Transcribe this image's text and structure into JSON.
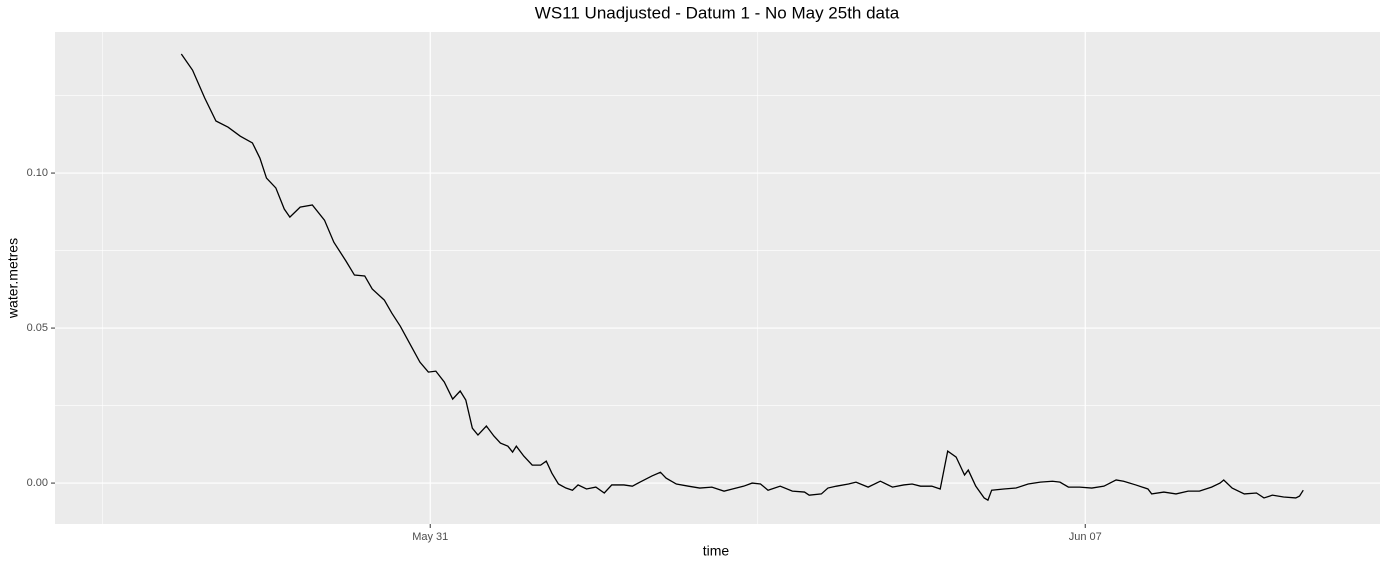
{
  "chart_data": {
    "type": "line",
    "title": "WS11 Unadjusted - Datum 1 - No May 25th data",
    "x_label": "time",
    "y_label": "water.metres",
    "xlim": [
      26.99,
      41.15
    ],
    "xticks": [
      {
        "value": 31,
        "label": "May 31"
      },
      {
        "value": 38,
        "label": "Jun 07"
      }
    ],
    "ylim": [
      -0.0132,
      0.1455
    ],
    "yticks": [
      {
        "value": 0,
        "label": "0.00"
      },
      {
        "value": 0.05,
        "label": "0.05"
      },
      {
        "value": 0.1,
        "label": "0.10"
      }
    ],
    "grid": true,
    "series": [
      {
        "color": "#000000",
        "x": [
          28.34,
          28.46,
          28.59,
          28.71,
          28.84,
          28.97,
          29.1,
          29.18,
          29.25,
          29.35,
          29.44,
          29.5,
          29.61,
          29.74,
          29.87,
          29.97,
          30.1,
          30.19,
          30.3,
          30.38,
          30.51,
          30.59,
          30.68,
          30.79,
          30.89,
          30.98,
          31.06,
          31.15,
          31.24,
          31.32,
          31.38,
          31.45,
          31.51,
          31.6,
          31.68,
          31.75,
          31.83,
          31.88,
          31.92,
          32.0,
          32.09,
          32.18,
          32.24,
          32.3,
          32.37,
          32.45,
          32.52,
          32.58,
          32.67,
          32.77,
          32.86,
          32.94,
          33.07,
          33.16,
          33.24,
          33.37,
          33.46,
          33.52,
          33.63,
          33.76,
          33.88,
          34.01,
          34.14,
          34.23,
          34.35,
          34.44,
          34.53,
          34.61,
          34.74,
          34.87,
          35.0,
          35.05,
          35.18,
          35.25,
          35.34,
          35.47,
          35.55,
          35.68,
          35.81,
          35.94,
          36.06,
          36.15,
          36.24,
          36.36,
          36.45,
          36.49,
          36.53,
          36.62,
          36.71,
          36.75,
          36.83,
          36.92,
          36.96,
          37.0,
          37.13,
          37.26,
          37.39,
          37.52,
          37.65,
          37.73,
          37.82,
          37.94,
          38.07,
          38.2,
          38.33,
          38.41,
          38.54,
          38.67,
          38.71,
          38.84,
          38.97,
          39.1,
          39.22,
          39.35,
          39.44,
          39.48,
          39.57,
          39.7,
          39.83,
          39.91,
          40.0,
          40.12,
          40.25,
          40.29,
          40.33
        ],
        "values": [
          0.1384,
          0.1332,
          0.1242,
          0.1168,
          0.1148,
          0.1119,
          0.1097,
          0.1048,
          0.0984,
          0.0952,
          0.0884,
          0.0858,
          0.089,
          0.0897,
          0.0848,
          0.0777,
          0.0716,
          0.0671,
          0.0668,
          0.0626,
          0.059,
          0.0548,
          0.0506,
          0.0445,
          0.039,
          0.0358,
          0.0361,
          0.0326,
          0.0271,
          0.0297,
          0.0268,
          0.0177,
          0.0155,
          0.0184,
          0.0152,
          0.0129,
          0.0119,
          0.01,
          0.0119,
          0.0087,
          0.0058,
          0.0058,
          0.0071,
          0.0032,
          -0.0003,
          -0.0016,
          -0.0023,
          -0.0006,
          -0.0019,
          -0.0013,
          -0.0032,
          -0.0006,
          -0.0006,
          -0.001,
          0.0003,
          0.0023,
          0.0035,
          0.0016,
          -0.0003,
          -0.001,
          -0.0016,
          -0.0013,
          -0.0026,
          -0.0019,
          -0.001,
          0.0,
          -0.0003,
          -0.0023,
          -0.001,
          -0.0026,
          -0.0029,
          -0.0039,
          -0.0035,
          -0.0016,
          -0.001,
          -0.0003,
          0.0003,
          -0.0013,
          0.0006,
          -0.0013,
          -0.0006,
          -0.0003,
          -0.001,
          -0.001,
          -0.0019,
          0.0042,
          0.0103,
          0.0084,
          0.0026,
          0.0042,
          -0.001,
          -0.0048,
          -0.0055,
          -0.0023,
          -0.0019,
          -0.0016,
          -0.0003,
          0.0003,
          0.0006,
          0.0003,
          -0.0013,
          -0.0013,
          -0.0016,
          -0.001,
          0.001,
          0.0006,
          -0.0006,
          -0.0019,
          -0.0035,
          -0.0029,
          -0.0035,
          -0.0026,
          -0.0026,
          -0.0013,
          0.0,
          0.001,
          -0.0016,
          -0.0035,
          -0.0032,
          -0.0048,
          -0.0039,
          -0.0045,
          -0.0048,
          -0.0042,
          -0.0023
        ]
      }
    ]
  }
}
